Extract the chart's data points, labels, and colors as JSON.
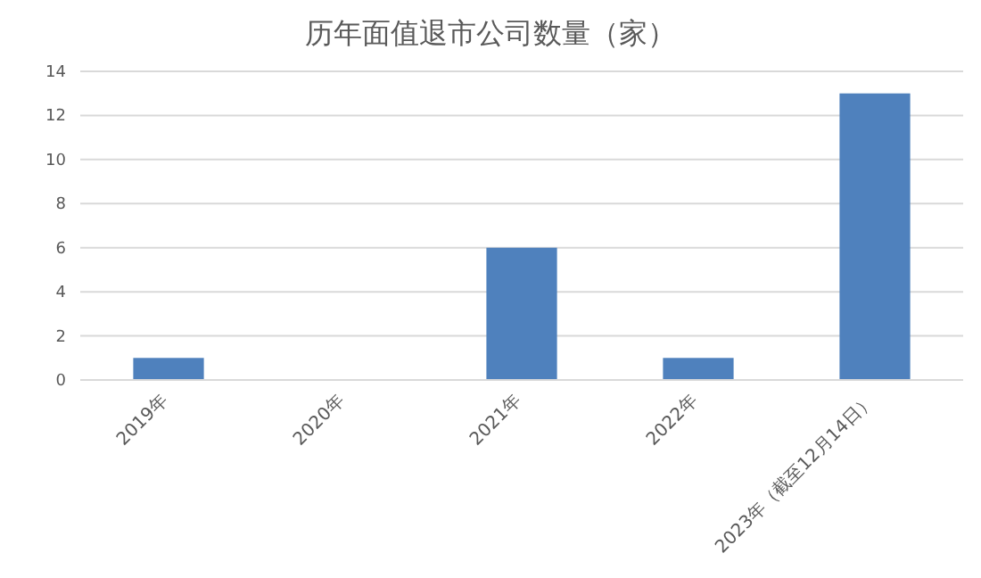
{
  "chart_data": {
    "type": "bar",
    "title": "历年面值退市公司数量（家）",
    "categories": [
      "2019年",
      "2020年",
      "2021年",
      "2022年",
      "2023年（截至12月14日）"
    ],
    "values": [
      1,
      0,
      6,
      1,
      13
    ],
    "color": "#4f81bd",
    "ylim": [
      0,
      14
    ],
    "yticks": [
      0,
      2,
      4,
      6,
      8,
      10,
      12,
      14
    ],
    "grid": "y"
  }
}
